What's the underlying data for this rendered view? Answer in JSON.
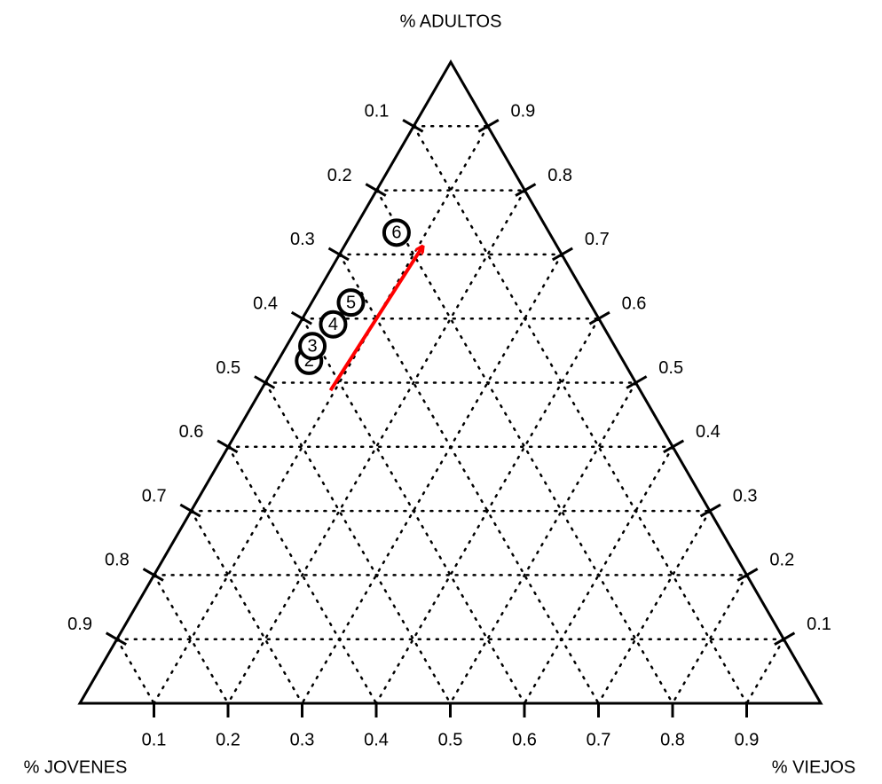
{
  "chart_data": {
    "type": "ternary",
    "axis_labels": {
      "top": "% ADULTOS",
      "left": "% JOVENES",
      "right": "% VIEJOS"
    },
    "adultos_ticks": [
      0.1,
      0.2,
      0.3,
      0.4,
      0.5,
      0.6,
      0.7,
      0.8,
      0.9
    ],
    "jovenes_ticks": [
      0.1,
      0.2,
      0.3,
      0.4,
      0.5,
      0.6,
      0.7,
      0.8,
      0.9
    ],
    "viejos_ticks": [
      0.1,
      0.2,
      0.3,
      0.4,
      0.5,
      0.6,
      0.7,
      0.8,
      0.9
    ],
    "grid": true,
    "points": [
      {
        "label": "2",
        "jovenes": 0.424,
        "adultos": 0.534,
        "viejos": 0.042
      },
      {
        "label": "3",
        "jovenes": 0.408,
        "adultos": 0.557,
        "viejos": 0.035
      },
      {
        "label": "4",
        "jovenes": 0.363,
        "adultos": 0.591,
        "viejos": 0.046
      },
      {
        "label": "5",
        "jovenes": 0.322,
        "adultos": 0.625,
        "viejos": 0.053
      },
      {
        "label": "6",
        "jovenes": 0.206,
        "adultos": 0.734,
        "viejos": 0.06
      }
    ],
    "arrow": {
      "color": "#ff0000",
      "from": {
        "jovenes": 0.418,
        "adultos": 0.488,
        "viejos": 0.094
      },
      "to": {
        "jovenes": 0.182,
        "adultos": 0.712,
        "viejos": 0.106
      }
    }
  }
}
